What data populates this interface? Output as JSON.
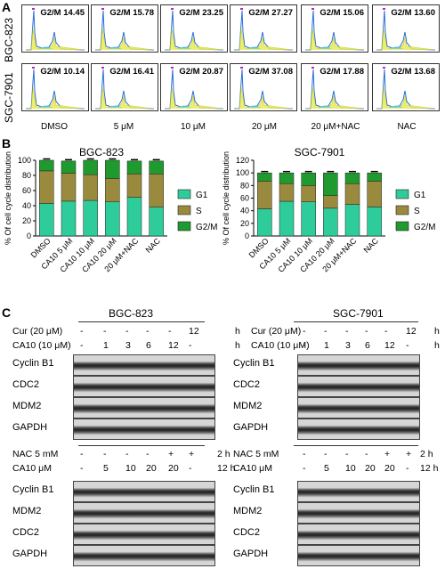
{
  "panel_a": {
    "letter": "A",
    "cell_lines": [
      "BGC-823",
      "SGC-7901"
    ],
    "conditions": [
      "DMSO",
      "5 μM",
      "10 μM",
      "20 μM",
      "20 μM+NAC",
      "NAC"
    ],
    "bgc_g2m": [
      "G2/M 14.45",
      "G2/M 15.78",
      "G2/M 23.25",
      "G2/M 27.27",
      "G2/M 15.06",
      "G2/M 13.60"
    ],
    "sgc_g2m": [
      "G2/M 10.14",
      "G2/M 16.41",
      "G2/M 20.87",
      "G2/M 37.08",
      "G2/M 17.88",
      "G2/M 13.68"
    ]
  },
  "panel_b": {
    "letter": "B",
    "chart_data": [
      {
        "type": "bar",
        "title": "BGC-823",
        "ylabel": "% Of cell cycle distribution",
        "ylim": [
          0,
          100
        ],
        "yticks": [
          "0",
          "20",
          "40",
          "60",
          "80",
          "100"
        ],
        "categories": [
          "DMSO",
          "CA10 5 μM",
          "CA10 10 μM",
          "CA10 20 μM",
          "20 μM+NAC",
          "NAC"
        ],
        "series": [
          {
            "name": "G1",
            "color": "#2ecc9a",
            "values": [
              43,
              46,
              47,
              45,
              51,
              38
            ]
          },
          {
            "name": "S",
            "color": "#9a8a3e",
            "values": [
              43,
              37,
              34,
              31,
              31,
              44
            ]
          },
          {
            "name": "G2/M",
            "color": "#1e9a2e",
            "values": [
              14,
              16,
              19,
              24,
              17,
              17
            ]
          }
        ]
      },
      {
        "type": "bar",
        "title": "SGC-7901",
        "ylabel": "% Of cell cycle distribution",
        "ylim": [
          0,
          120
        ],
        "yticks": [
          "0",
          "20",
          "40",
          "60",
          "80",
          "100",
          "120"
        ],
        "categories": [
          "DMSO",
          "CA10 5 μM",
          "CA10 10 μM",
          "CA10 20 μM",
          "20 μM+NAC",
          "NAC"
        ],
        "series": [
          {
            "name": "G1",
            "color": "#2ecc9a",
            "values": [
              43,
              55,
              54,
              44,
              50,
              46
            ]
          },
          {
            "name": "S",
            "color": "#9a8a3e",
            "values": [
              44,
              28,
              26,
              20,
              33,
              41
            ]
          },
          {
            "name": "G2/M",
            "color": "#1e9a2e",
            "values": [
              13,
              17,
              20,
              36,
              17,
              13
            ]
          }
        ]
      }
    ]
  },
  "panel_c": {
    "letter": "C",
    "top": {
      "titles": [
        "BGC-823",
        "SGC-7901"
      ],
      "row1_label": "Cur (20 μM)",
      "row1_values": [
        "-",
        "-",
        "-",
        "-",
        "-",
        "12"
      ],
      "row2_label": "CA10 (10 μM)",
      "row2_values": [
        "-",
        "1",
        "3",
        "6",
        "12",
        "-"
      ],
      "unit": "h",
      "blots_left": [
        "Cyclin B1",
        "CDC2",
        "MDM2",
        "GAPDH"
      ],
      "blots_right": [
        "Cyclin B1",
        "CDC2",
        "MDM2",
        "GAPDH"
      ]
    },
    "bottom": {
      "row1_label": "NAC 5 mM",
      "row1_values": [
        "-",
        "-",
        "-",
        "-",
        "+",
        "+"
      ],
      "row1_unit": "2 h",
      "row2_label": "CA10 μM",
      "row2_values": [
        "-",
        "5",
        "10",
        "20",
        "20",
        "-"
      ],
      "row2_unit": "12 h",
      "blots_left": [
        "Cyclin B1",
        "MDM2",
        "CDC2",
        "GAPDH"
      ],
      "blots_right": [
        "Cyclin B1",
        "MDM2",
        "CDC2",
        "GAPDH"
      ]
    }
  }
}
